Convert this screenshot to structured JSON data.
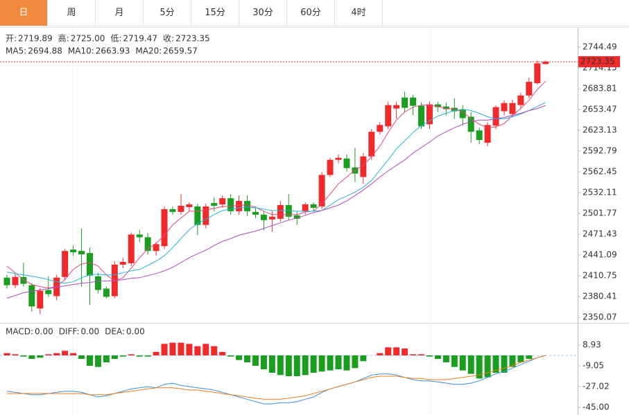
{
  "tabs": [
    "日",
    "周",
    "月",
    "5分",
    "15分",
    "30分",
    "60分",
    "4时"
  ],
  "active_tab": 0,
  "chart_data": [
    {
      "type": "candlestick",
      "header": [
        {
          "label": "开:",
          "text": "2719.89"
        },
        {
          "label": "高:",
          "text": "2725.00"
        },
        {
          "label": "低:",
          "text": "2719.47"
        },
        {
          "label": "收:",
          "text": "2723.35"
        }
      ],
      "up_color": "#f0292b",
      "down_color": "#1a9e1f",
      "open": [
        2408,
        2397,
        2409,
        2397,
        2363,
        2390,
        2381,
        2409,
        2449,
        2447,
        2444,
        2410,
        2392,
        2381,
        2427,
        2429,
        2471,
        2467,
        2447,
        2454,
        2508,
        2504,
        2511,
        2512,
        2485,
        2517,
        2515,
        2524,
        2505,
        2520,
        2504,
        2500,
        2493,
        2494,
        2514,
        2499,
        2505,
        2515,
        2512,
        2558,
        2580,
        2582,
        2569,
        2555,
        2585,
        2621,
        2629,
        2655,
        2671,
        2671,
        2659,
        2632,
        2661,
        2658,
        2656,
        2653,
        2643,
        2623,
        2605,
        2630,
        2651,
        2647,
        2660,
        2674,
        2692,
        2719.89
      ],
      "high": [
        2412,
        2413,
        2430,
        2400,
        2393,
        2410,
        2412,
        2450,
        2455,
        2480,
        2452,
        2415,
        2395,
        2432,
        2437,
        2474,
        2478,
        2473,
        2460,
        2512,
        2512,
        2530,
        2518,
        2516,
        2516,
        2525,
        2528,
        2530,
        2528,
        2528,
        2510,
        2505,
        2505,
        2520,
        2530,
        2505,
        2518,
        2518,
        2562,
        2583,
        2588,
        2588,
        2598,
        2590,
        2625,
        2635,
        2665,
        2665,
        2680,
        2675,
        2664,
        2665,
        2665,
        2664,
        2670,
        2660,
        2650,
        2627,
        2635,
        2660,
        2667,
        2668,
        2678,
        2700,
        2725,
        2725
      ],
      "low": [
        2392,
        2393,
        2395,
        2358,
        2355,
        2380,
        2375,
        2404,
        2440,
        2395,
        2368,
        2385,
        2378,
        2378,
        2422,
        2425,
        2460,
        2442,
        2440,
        2450,
        2500,
        2500,
        2505,
        2470,
        2480,
        2505,
        2510,
        2500,
        2500,
        2498,
        2495,
        2477,
        2475,
        2490,
        2492,
        2485,
        2500,
        2505,
        2508,
        2555,
        2575,
        2563,
        2548,
        2545,
        2580,
        2617,
        2625,
        2640,
        2650,
        2645,
        2625,
        2625,
        2650,
        2645,
        2640,
        2630,
        2605,
        2603,
        2600,
        2625,
        2645,
        2642,
        2655,
        2670,
        2690,
        2719.47
      ],
      "close": [
        2397,
        2409,
        2399,
        2366,
        2389,
        2384,
        2408,
        2447,
        2445,
        2442,
        2411,
        2390,
        2380,
        2427,
        2431,
        2471,
        2467,
        2447,
        2457,
        2508,
        2504,
        2513,
        2515,
        2485,
        2512,
        2513,
        2524,
        2505,
        2520,
        2505,
        2500,
        2492,
        2497,
        2514,
        2497,
        2494,
        2515,
        2510,
        2558,
        2580,
        2583,
        2568,
        2560,
        2585,
        2621,
        2631,
        2660,
        2660,
        2656,
        2659,
        2629,
        2661,
        2657,
        2654,
        2651,
        2641,
        2621,
        2609,
        2631,
        2657,
        2663,
        2663,
        2674,
        2694,
        2721,
        2723.35
      ],
      "series": [
        {
          "name": "MA5:",
          "color": "#e4477a",
          "values": [
            2425,
            2415,
            2405,
            2398,
            2395,
            2393,
            2395,
            2405,
            2420,
            2428,
            2430,
            2425,
            2412,
            2403,
            2408,
            2422,
            2437,
            2450,
            2458,
            2470,
            2485,
            2495,
            2505,
            2505,
            2507,
            2509,
            2512,
            2512,
            2514,
            2514,
            2511,
            2505,
            2500,
            2500,
            2500,
            2500,
            2504,
            2505,
            2516,
            2530,
            2545,
            2555,
            2565,
            2572,
            2585,
            2600,
            2620,
            2638,
            2650,
            2657,
            2660,
            2660,
            2658,
            2655,
            2654,
            2650,
            2640,
            2632,
            2627,
            2628,
            2633,
            2645,
            2655,
            2667,
            2683,
            2694.88
          ]
        },
        {
          "name": "MA10:",
          "color": "#27b3d6",
          "values": [
            2416,
            2414,
            2412,
            2410,
            2408,
            2405,
            2402,
            2400,
            2402,
            2408,
            2412,
            2413,
            2412,
            2412,
            2415,
            2418,
            2420,
            2426,
            2432,
            2440,
            2452,
            2465,
            2478,
            2487,
            2493,
            2500,
            2506,
            2508,
            2510,
            2511,
            2510,
            2508,
            2506,
            2506,
            2506,
            2505,
            2505,
            2505,
            2506,
            2514,
            2522,
            2527,
            2533,
            2540,
            2550,
            2565,
            2580,
            2596,
            2608,
            2620,
            2630,
            2637,
            2644,
            2648,
            2652,
            2654,
            2652,
            2648,
            2643,
            2640,
            2640,
            2643,
            2647,
            2652,
            2658,
            2663.93
          ]
        },
        {
          "name": "MA20:",
          "color": "#b04ac0",
          "values": [
            2378,
            2382,
            2386,
            2388,
            2390,
            2392,
            2394,
            2396,
            2398,
            2400,
            2401,
            2403,
            2403,
            2404,
            2405,
            2407,
            2408,
            2411,
            2414,
            2418,
            2423,
            2430,
            2437,
            2443,
            2448,
            2455,
            2461,
            2465,
            2470,
            2473,
            2476,
            2480,
            2484,
            2488,
            2492,
            2495,
            2499,
            2503,
            2506,
            2510,
            2514,
            2520,
            2528,
            2536,
            2545,
            2555,
            2564,
            2572,
            2580,
            2590,
            2598,
            2606,
            2615,
            2621,
            2627,
            2632,
            2636,
            2638,
            2638,
            2640,
            2642,
            2645,
            2648,
            2652,
            2655,
            2659.57
          ]
        }
      ],
      "last_price": 2723.35,
      "ylim": [
        2343,
        2773
      ],
      "yticks": [
        2744.49,
        2714.15,
        2683.81,
        2653.47,
        2623.13,
        2592.79,
        2562.45,
        2532.11,
        2501.77,
        2471.43,
        2441.09,
        2410.75,
        2380.41,
        2350.07
      ]
    },
    {
      "type": "macd",
      "bars": {
        "name": "MACD:",
        "last_label": "0.00",
        "color": "#d93a3a",
        "up_color": "#f0292b",
        "down_color": "#1a9e1f",
        "values": [
          2,
          1,
          -1,
          -3,
          -2,
          1,
          2,
          4,
          2,
          -3,
          -9,
          -10,
          -6,
          -3,
          -1,
          1,
          -1,
          -1,
          3,
          10,
          11,
          11,
          10,
          8,
          10,
          8,
          3,
          -1,
          -4,
          -6,
          -9,
          -12,
          -15,
          -17,
          -18,
          -18,
          -17,
          -15,
          -14,
          -13,
          -12,
          -13,
          -11,
          -5,
          0,
          2,
          7,
          7,
          6,
          1,
          1,
          -1,
          -3,
          -6,
          -10,
          -13,
          -16,
          -20,
          -19,
          -15,
          -15,
          -10,
          -6,
          -3,
          0,
          0
        ]
      },
      "series": [
        {
          "name": "DIFF:",
          "last_label": "0.00",
          "color": "#3a8ee0",
          "values": [
            -31,
            -32,
            -33,
            -34,
            -34,
            -33,
            -32,
            -31,
            -31,
            -32,
            -34,
            -36,
            -35,
            -33,
            -31,
            -29,
            -28,
            -27,
            -28,
            -25,
            -24,
            -26,
            -27,
            -28,
            -29,
            -30,
            -32,
            -34,
            -36,
            -38,
            -40,
            -42,
            -42,
            -41,
            -41,
            -40,
            -38,
            -36,
            -32,
            -29,
            -27,
            -25,
            -23,
            -20,
            -17,
            -16,
            -16,
            -17,
            -19,
            -21,
            -22,
            -22,
            -23,
            -24,
            -25,
            -25,
            -24,
            -22,
            -19,
            -16,
            -14,
            -11,
            -8,
            -5,
            -2,
            0
          ]
        },
        {
          "name": "DEA:",
          "last_label": "0.00",
          "color": "#f07a1a",
          "values": [
            -33,
            -33,
            -33,
            -33,
            -33,
            -33,
            -33,
            -33,
            -33,
            -33,
            -34,
            -34,
            -34,
            -33,
            -32,
            -31,
            -30,
            -29,
            -28,
            -28,
            -28,
            -29,
            -30,
            -30,
            -31,
            -32,
            -33,
            -34,
            -35,
            -36,
            -37,
            -38,
            -38,
            -38,
            -37,
            -36,
            -35,
            -33,
            -31,
            -29,
            -27,
            -25,
            -23,
            -21,
            -19,
            -18,
            -18,
            -18,
            -19,
            -20,
            -20,
            -21,
            -21,
            -21,
            -20,
            -19,
            -18,
            -17,
            -15,
            -13,
            -11,
            -9,
            -6,
            -4,
            -2,
            0
          ]
        }
      ],
      "ylim": [
        -51,
        27
      ],
      "yticks": [
        8.93,
        -9.05,
        -27.02,
        {
          "value": -45,
          "label": "-45.00"
        }
      ]
    }
  ]
}
